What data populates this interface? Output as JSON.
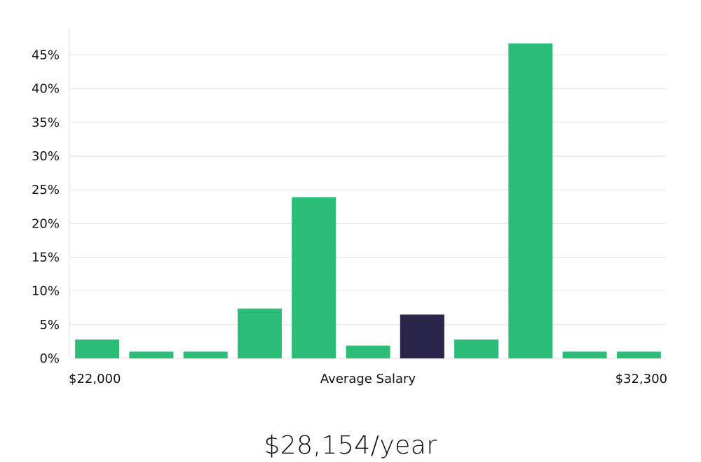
{
  "chart_data": {
    "type": "bar",
    "x_axis": {
      "min_label": "$22,000",
      "center_label": "Average Salary",
      "max_label": "$32,300"
    },
    "y_ticks": [
      "0%",
      "5%",
      "10%",
      "15%",
      "20%",
      "25%",
      "30%",
      "35%",
      "40%",
      "45%"
    ],
    "ylim": [
      0,
      49
    ],
    "grid": true,
    "values": [
      2.8,
      1.0,
      1.0,
      7.4,
      23.9,
      1.9,
      6.5,
      2.8,
      46.7,
      1.0,
      1.0
    ],
    "highlight_index": 6,
    "colors": {
      "bar": "#2bbd77",
      "highlight": "#28254a",
      "grid": "#e2e2e2",
      "axis": "#dddddd"
    }
  },
  "salary": {
    "text": "$28,154/year"
  }
}
